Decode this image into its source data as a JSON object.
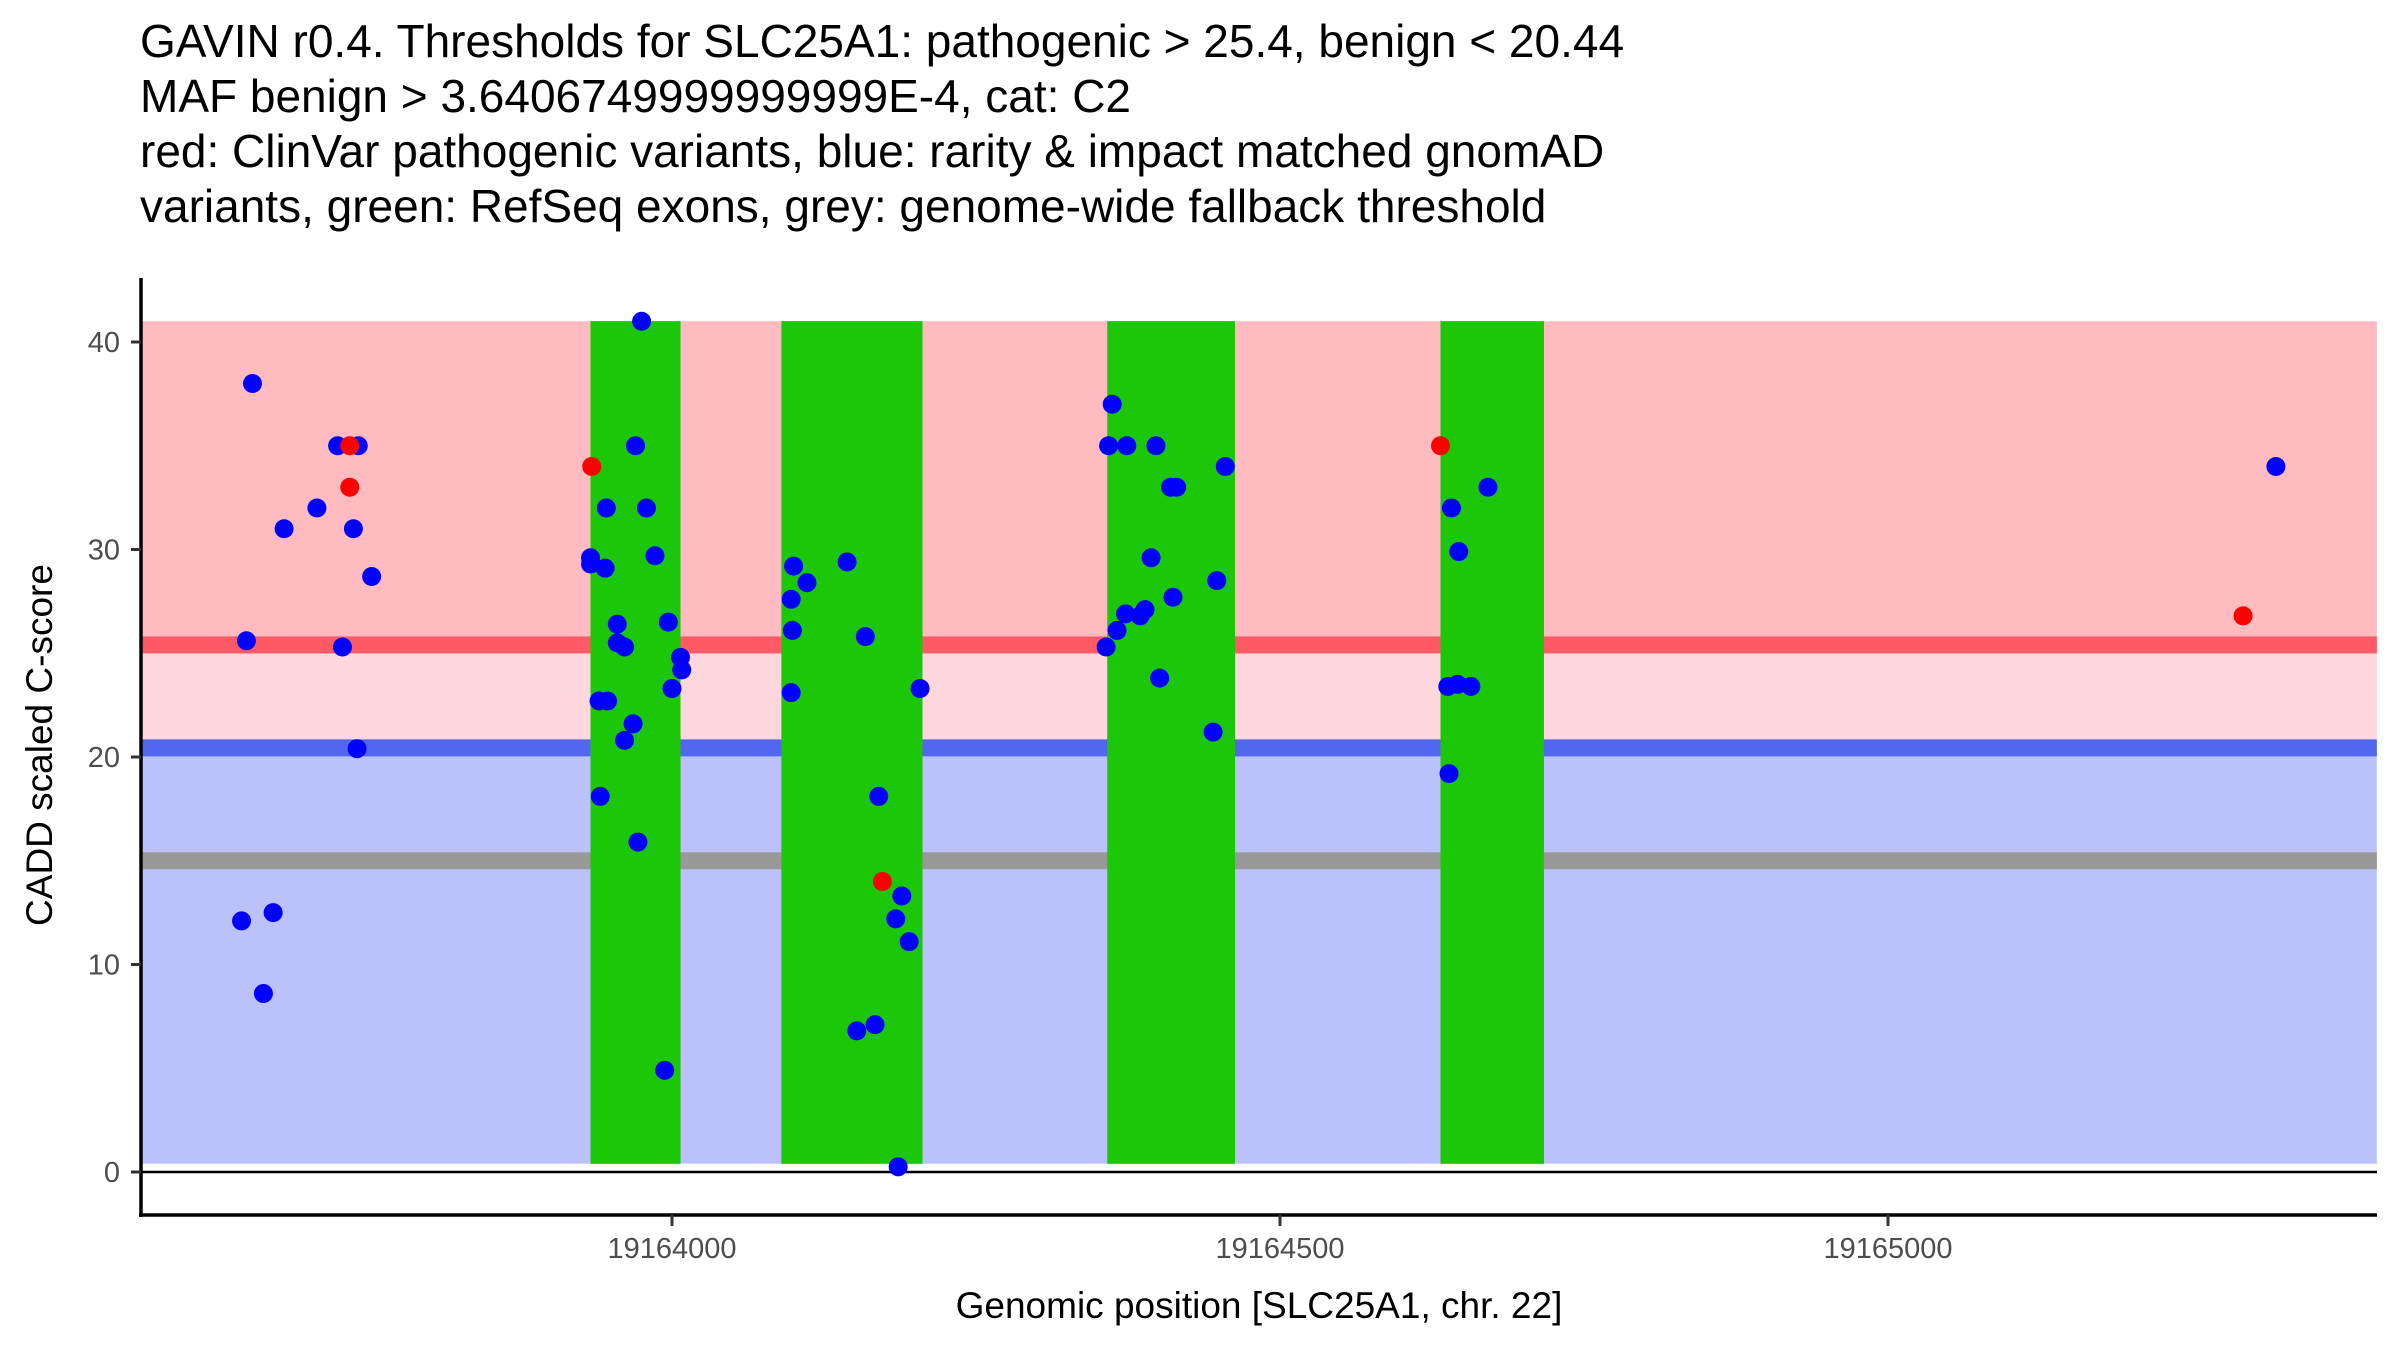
{
  "chart_data": {
    "type": "scatter",
    "title_lines": [
      "GAVIN r0.4. Thresholds for SLC25A1: pathogenic > 25.4, benign < 20.44",
      "MAF benign > 3.6406749999999999E-4, cat: C2",
      "red: ClinVar pathogenic variants, blue: rarity & impact matched gnomAD",
      "variants, green: RefSeq exons, grey: genome-wide fallback threshold"
    ],
    "xlabel": "Genomic position [SLC25A1, chr. 22]",
    "ylabel": "CADD scaled C-score",
    "xlim": [
      19163562,
      19165402
    ],
    "ylim": [
      -2,
      42
    ],
    "x_ticks": [
      19164000,
      19164500,
      19165000
    ],
    "x_tick_labels": [
      "19164000",
      "19164500",
      "19165000"
    ],
    "y_ticks": [
      0,
      10,
      20,
      30,
      40
    ],
    "y_tick_labels": [
      "0",
      "10",
      "20",
      "30",
      "40"
    ],
    "grid": false,
    "legend": "none (encoded in title)",
    "regions": {
      "pathogenic_zone": {
        "from": 25.4,
        "to": 41,
        "color": "#ffbbc0"
      },
      "intermediate_zone": {
        "from": 20.44,
        "to": 25.4,
        "color": "#ffd7dc"
      },
      "benign_zone": {
        "from": 0.4,
        "to": 20.44,
        "color": "#bbc2fb"
      },
      "x_range": [
        19163562,
        19165402
      ]
    },
    "thresholds": [
      {
        "name": "pathogenic",
        "value": 25.4,
        "color": "#ff5a66"
      },
      {
        "name": "benign",
        "value": 20.44,
        "color": "#5366f0"
      },
      {
        "name": "genome-wide fallback",
        "value": 15.0,
        "color": "#999999"
      }
    ],
    "exons": [
      {
        "start": 19163933,
        "end": 19164007
      },
      {
        "start": 19164090,
        "end": 19164206
      },
      {
        "start": 19164358,
        "end": 19164463
      },
      {
        "start": 19164632,
        "end": 19164717
      }
    ],
    "exon_color": "#1bc706",
    "series": [
      {
        "name": "ClinVar pathogenic variants",
        "color": "#ff0000",
        "points": [
          [
            19163735,
            35.0
          ],
          [
            19163735,
            33.0
          ],
          [
            19163934,
            34.0
          ],
          [
            19164173,
            14.0
          ],
          [
            19164632,
            35.0
          ],
          [
            19165292,
            26.8
          ]
        ]
      },
      {
        "name": "rarity & impact matched gnomAD variants",
        "color": "#0000ff",
        "points": [
          [
            19163655,
            38.0
          ],
          [
            19163725,
            35.0
          ],
          [
            19163742,
            35.0
          ],
          [
            19163708,
            32.0
          ],
          [
            19163681,
            31.0
          ],
          [
            19163738,
            31.0
          ],
          [
            19163753,
            28.7
          ],
          [
            19163650,
            25.6
          ],
          [
            19163729,
            25.3
          ],
          [
            19163741,
            20.4
          ],
          [
            19163646,
            12.1
          ],
          [
            19163672,
            12.5
          ],
          [
            19163664,
            8.6
          ],
          [
            19163975,
            41.0
          ],
          [
            19163970,
            35.0
          ],
          [
            19163946,
            32.0
          ],
          [
            19163979,
            32.0
          ],
          [
            19163933,
            29.6
          ],
          [
            19163933,
            29.3
          ],
          [
            19163945,
            29.1
          ],
          [
            19163986,
            29.7
          ],
          [
            19163955,
            26.4
          ],
          [
            19163997,
            26.5
          ],
          [
            19163955,
            25.5
          ],
          [
            19163961,
            25.3
          ],
          [
            19164007,
            24.8
          ],
          [
            19164008,
            24.2
          ],
          [
            19164000,
            23.3
          ],
          [
            19163940,
            22.7
          ],
          [
            19163947,
            22.7
          ],
          [
            19163968,
            21.6
          ],
          [
            19163961,
            20.8
          ],
          [
            19163941,
            18.1
          ],
          [
            19163972,
            15.9
          ],
          [
            19163994,
            4.9
          ],
          [
            19164100,
            29.2
          ],
          [
            19164111,
            28.4
          ],
          [
            19164098,
            27.6
          ],
          [
            19164144,
            29.4
          ],
          [
            19164099,
            26.1
          ],
          [
            19164159,
            25.8
          ],
          [
            19164098,
            23.1
          ],
          [
            19164204,
            23.3
          ],
          [
            19164170,
            18.1
          ],
          [
            19164189,
            13.3
          ],
          [
            19164184,
            12.2
          ],
          [
            19164195,
            11.1
          ],
          [
            19164152,
            6.8
          ],
          [
            19164167,
            7.1
          ],
          [
            19164186,
            0.25
          ],
          [
            19164362,
            37.0
          ],
          [
            19164359,
            35.0
          ],
          [
            19164374,
            35.0
          ],
          [
            19164398,
            35.0
          ],
          [
            19164455,
            34.0
          ],
          [
            19164410,
            33.0
          ],
          [
            19164415,
            33.0
          ],
          [
            19164394,
            29.6
          ],
          [
            19164448,
            28.5
          ],
          [
            19164412,
            27.7
          ],
          [
            19164389,
            27.1
          ],
          [
            19164385,
            26.8
          ],
          [
            19164373,
            26.9
          ],
          [
            19164366,
            26.1
          ],
          [
            19164357,
            25.3
          ],
          [
            19164401,
            23.8
          ],
          [
            19164445,
            21.2
          ],
          [
            19164671,
            33.0
          ],
          [
            19164641,
            32.0
          ],
          [
            19164647,
            29.9
          ],
          [
            19164638,
            23.4
          ],
          [
            19164646,
            23.5
          ],
          [
            19164657,
            23.4
          ],
          [
            19164639,
            19.2
          ],
          [
            19165319,
            34.0
          ]
        ]
      }
    ]
  }
}
